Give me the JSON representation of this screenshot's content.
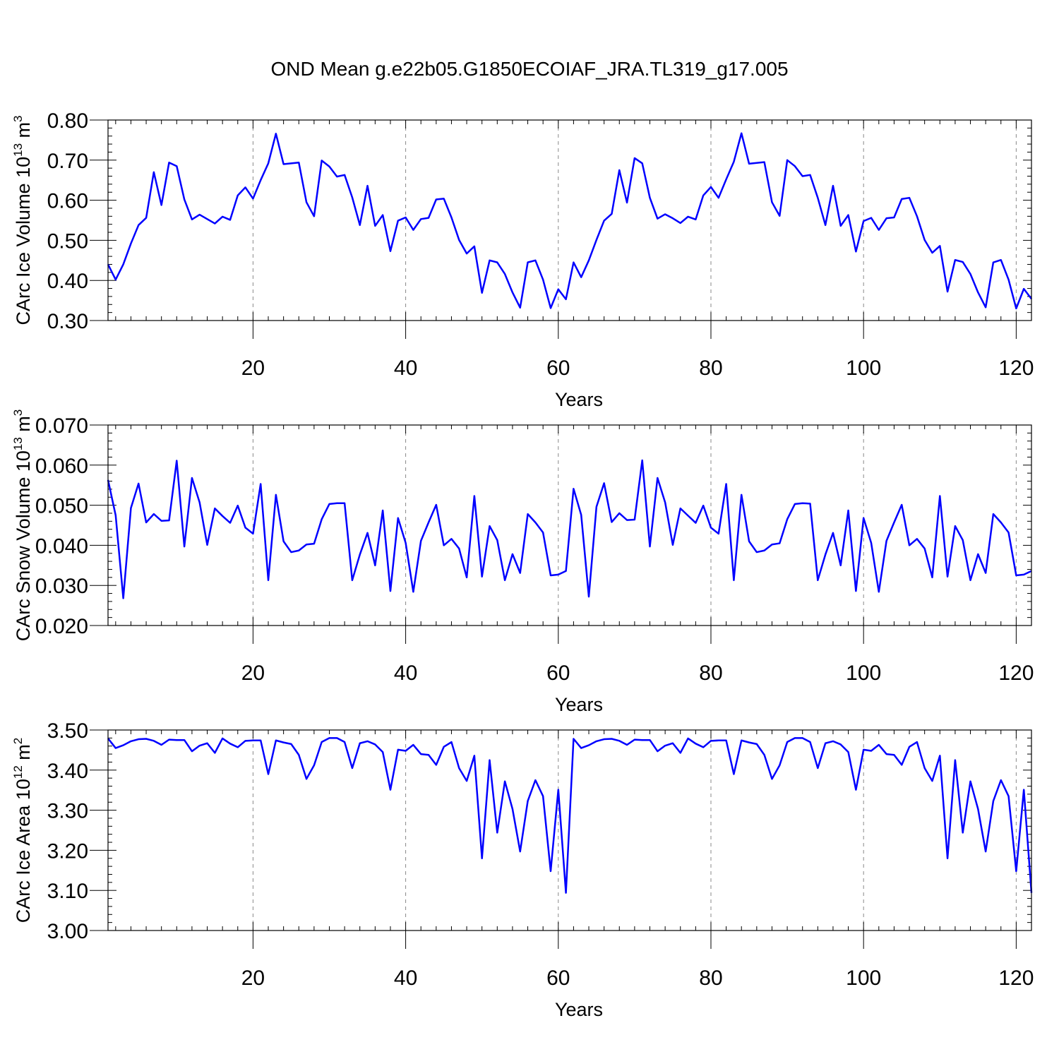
{
  "title": "OND Mean g.e22b05.G1850ECOIAF_JRA.TL319_g17.005",
  "colors": {
    "series": "#0000ff",
    "axes": "#000000",
    "grid": "#888888"
  },
  "chart_data": [
    {
      "type": "line",
      "xlabel": "Years",
      "ylabel": {
        "text": "CArc Ice Volume 10",
        "exp": "13",
        "unit": "m",
        "unit_exp": "3"
      },
      "xlim": [
        1,
        122
      ],
      "ylim": [
        0.3,
        0.8
      ],
      "xticks": [
        20,
        40,
        60,
        80,
        100,
        120
      ],
      "xtick_labels": [
        "20",
        "40",
        "60",
        "80",
        "100",
        "120"
      ],
      "yticks": [
        0.3,
        0.4,
        0.5,
        0.6,
        0.7,
        0.8
      ],
      "ytick_labels": [
        "0.30",
        "0.40",
        "0.50",
        "0.60",
        "0.70",
        "0.80"
      ],
      "grid": "vertical dashed at x ticks",
      "series": [
        {
          "x_start": 1,
          "values": [
            0.44,
            0.402,
            0.44,
            0.492,
            0.538,
            0.556,
            0.67,
            0.588,
            0.694,
            0.685,
            0.602,
            0.552,
            0.564,
            0.553,
            0.542,
            0.559,
            0.551,
            0.612,
            0.632,
            0.604,
            0.65,
            0.692,
            0.766,
            0.69,
            0.692,
            0.694,
            0.595,
            0.56,
            0.699,
            0.684,
            0.659,
            0.663,
            0.607,
            0.538,
            0.636,
            0.536,
            0.563,
            0.473,
            0.549,
            0.557,
            0.526,
            0.553,
            0.556,
            0.602,
            0.604,
            0.557,
            0.501,
            0.467,
            0.485,
            0.369,
            0.45,
            0.445,
            0.416,
            0.37,
            0.332,
            0.445,
            0.45,
            0.402,
            0.331,
            0.378,
            0.353,
            0.445,
            0.408,
            0.45,
            0.501,
            0.549,
            0.566,
            0.675,
            0.594,
            0.705,
            0.692,
            0.606,
            0.554,
            0.565,
            0.555,
            0.543,
            0.559,
            0.552,
            0.612,
            0.633,
            0.606,
            0.652,
            0.696,
            0.767,
            0.691,
            0.693,
            0.695,
            0.595,
            0.561,
            0.7,
            0.685,
            0.66,
            0.663,
            0.606,
            0.538,
            0.636,
            0.536,
            0.563,
            0.472,
            0.548,
            0.556,
            0.526,
            0.555,
            0.557,
            0.603,
            0.606,
            0.56,
            0.501,
            0.469,
            0.486,
            0.372,
            0.451,
            0.446,
            0.416,
            0.37,
            0.333,
            0.445,
            0.451,
            0.402,
            0.33,
            0.379,
            0.354
          ]
        }
      ]
    },
    {
      "type": "line",
      "xlabel": "Years",
      "ylabel": {
        "text": "CArc Snow Volume 10",
        "exp": "13",
        "unit": "m",
        "unit_exp": "3"
      },
      "xlim": [
        1,
        122
      ],
      "ylim": [
        0.02,
        0.07
      ],
      "xticks": [
        20,
        40,
        60,
        80,
        100,
        120
      ],
      "xtick_labels": [
        "20",
        "40",
        "60",
        "80",
        "100",
        "120"
      ],
      "yticks": [
        0.02,
        0.03,
        0.04,
        0.05,
        0.06,
        0.07
      ],
      "ytick_labels": [
        "0.020",
        "0.030",
        "0.040",
        "0.050",
        "0.060",
        "0.070"
      ],
      "grid": "vertical dashed at x ticks",
      "series": [
        {
          "x_start": 1,
          "values": [
            0.0563,
            0.0475,
            0.0268,
            0.0493,
            0.0554,
            0.0457,
            0.0478,
            0.0461,
            0.0462,
            0.0611,
            0.0397,
            0.0568,
            0.0507,
            0.0401,
            0.0492,
            0.0473,
            0.0456,
            0.0499,
            0.0444,
            0.0429,
            0.0553,
            0.0313,
            0.0526,
            0.041,
            0.0383,
            0.0387,
            0.0402,
            0.0404,
            0.0465,
            0.0503,
            0.0505,
            0.0505,
            0.0313,
            0.0377,
            0.0431,
            0.035,
            0.0487,
            0.0286,
            0.0468,
            0.0406,
            0.0284,
            0.0411,
            0.0457,
            0.0501,
            0.04,
            0.0416,
            0.0392,
            0.032,
            0.0523,
            0.0322,
            0.0448,
            0.0413,
            0.0313,
            0.0378,
            0.0331,
            0.0478,
            0.0457,
            0.0432,
            0.0325,
            0.0327,
            0.0336,
            0.0541,
            0.0476,
            0.0272,
            0.0496,
            0.0555,
            0.0458,
            0.048,
            0.0463,
            0.0464,
            0.0612,
            0.0397,
            0.0568,
            0.0507,
            0.0401,
            0.0492,
            0.0474,
            0.0456,
            0.0499,
            0.0444,
            0.0429,
            0.0553,
            0.0313,
            0.0526,
            0.041,
            0.0383,
            0.0387,
            0.0402,
            0.0405,
            0.0465,
            0.0503,
            0.0505,
            0.0504,
            0.0313,
            0.0377,
            0.0431,
            0.035,
            0.0487,
            0.0286,
            0.0468,
            0.0406,
            0.0284,
            0.0411,
            0.0457,
            0.0501,
            0.04,
            0.0416,
            0.0392,
            0.032,
            0.0523,
            0.0322,
            0.0448,
            0.0413,
            0.0313,
            0.0378,
            0.0331,
            0.0478,
            0.0457,
            0.0432,
            0.0325,
            0.0327,
            0.0336
          ]
        }
      ]
    },
    {
      "type": "line",
      "xlabel": "Years",
      "ylabel": {
        "text": "CArc Ice Area 10",
        "exp": "12",
        "unit": "m",
        "unit_exp": "2"
      },
      "xlim": [
        1,
        122
      ],
      "ylim": [
        3.0,
        3.5
      ],
      "xticks": [
        20,
        40,
        60,
        80,
        100,
        120
      ],
      "xtick_labels": [
        "20",
        "40",
        "60",
        "80",
        "100",
        "120"
      ],
      "yticks": [
        3.0,
        3.1,
        3.2,
        3.3,
        3.4,
        3.5
      ],
      "ytick_labels": [
        "3.00",
        "3.10",
        "3.20",
        "3.30",
        "3.40",
        "3.50"
      ],
      "grid": "vertical dashed at x ticks",
      "series": [
        {
          "x_start": 1,
          "values": [
            3.479,
            3.455,
            3.462,
            3.472,
            3.477,
            3.478,
            3.473,
            3.463,
            3.476,
            3.475,
            3.475,
            3.447,
            3.461,
            3.467,
            3.443,
            3.479,
            3.466,
            3.457,
            3.473,
            3.474,
            3.474,
            3.39,
            3.474,
            3.469,
            3.465,
            3.438,
            3.378,
            3.412,
            3.47,
            3.48,
            3.48,
            3.47,
            3.405,
            3.467,
            3.472,
            3.464,
            3.445,
            3.351,
            3.451,
            3.448,
            3.463,
            3.44,
            3.438,
            3.413,
            3.458,
            3.47,
            3.405,
            3.373,
            3.436,
            3.18,
            3.425,
            3.244,
            3.372,
            3.303,
            3.197,
            3.323,
            3.375,
            3.335,
            3.148,
            3.351,
            3.094,
            3.478,
            3.455,
            3.462,
            3.472,
            3.477,
            3.478,
            3.473,
            3.463,
            3.476,
            3.475,
            3.475,
            3.447,
            3.461,
            3.467,
            3.443,
            3.479,
            3.466,
            3.457,
            3.473,
            3.474,
            3.474,
            3.39,
            3.474,
            3.469,
            3.465,
            3.438,
            3.378,
            3.412,
            3.47,
            3.48,
            3.48,
            3.47,
            3.405,
            3.467,
            3.472,
            3.464,
            3.445,
            3.351,
            3.451,
            3.448,
            3.463,
            3.44,
            3.438,
            3.413,
            3.458,
            3.47,
            3.405,
            3.373,
            3.436,
            3.18,
            3.425,
            3.244,
            3.372,
            3.303,
            3.197,
            3.323,
            3.375,
            3.335,
            3.148,
            3.351,
            3.094
          ]
        }
      ]
    }
  ]
}
